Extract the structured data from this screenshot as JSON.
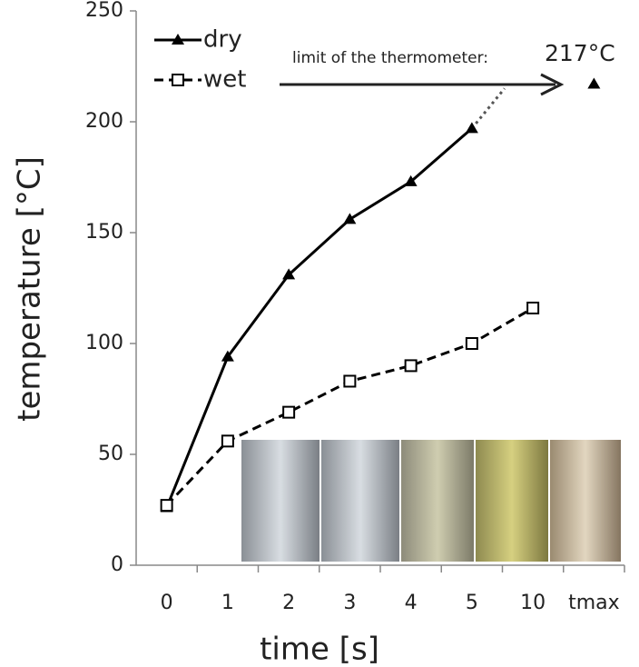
{
  "chart_data": {
    "type": "line",
    "x_label": "time [s]",
    "y_label": "temperature [°C]",
    "categories": [
      "0",
      "1",
      "2",
      "3",
      "4",
      "5",
      "10",
      "tmax"
    ],
    "series": [
      {
        "name": "dry",
        "color": "#000000",
        "marker": "triangle",
        "dash": "solid",
        "values": [
          26,
          94,
          131,
          156,
          173,
          197,
          null,
          217
        ]
      },
      {
        "name": "wet",
        "color": "#000000",
        "marker": "square",
        "dash": "dashed",
        "values": [
          27,
          56,
          69,
          83,
          90,
          100,
          116,
          null
        ]
      }
    ],
    "annotations": [
      "limit of the thermometer:",
      "217°C"
    ],
    "ylim": [
      0,
      250
    ],
    "yticks": [
      0,
      50,
      100,
      150,
      200,
      250
    ],
    "grid": false
  }
}
